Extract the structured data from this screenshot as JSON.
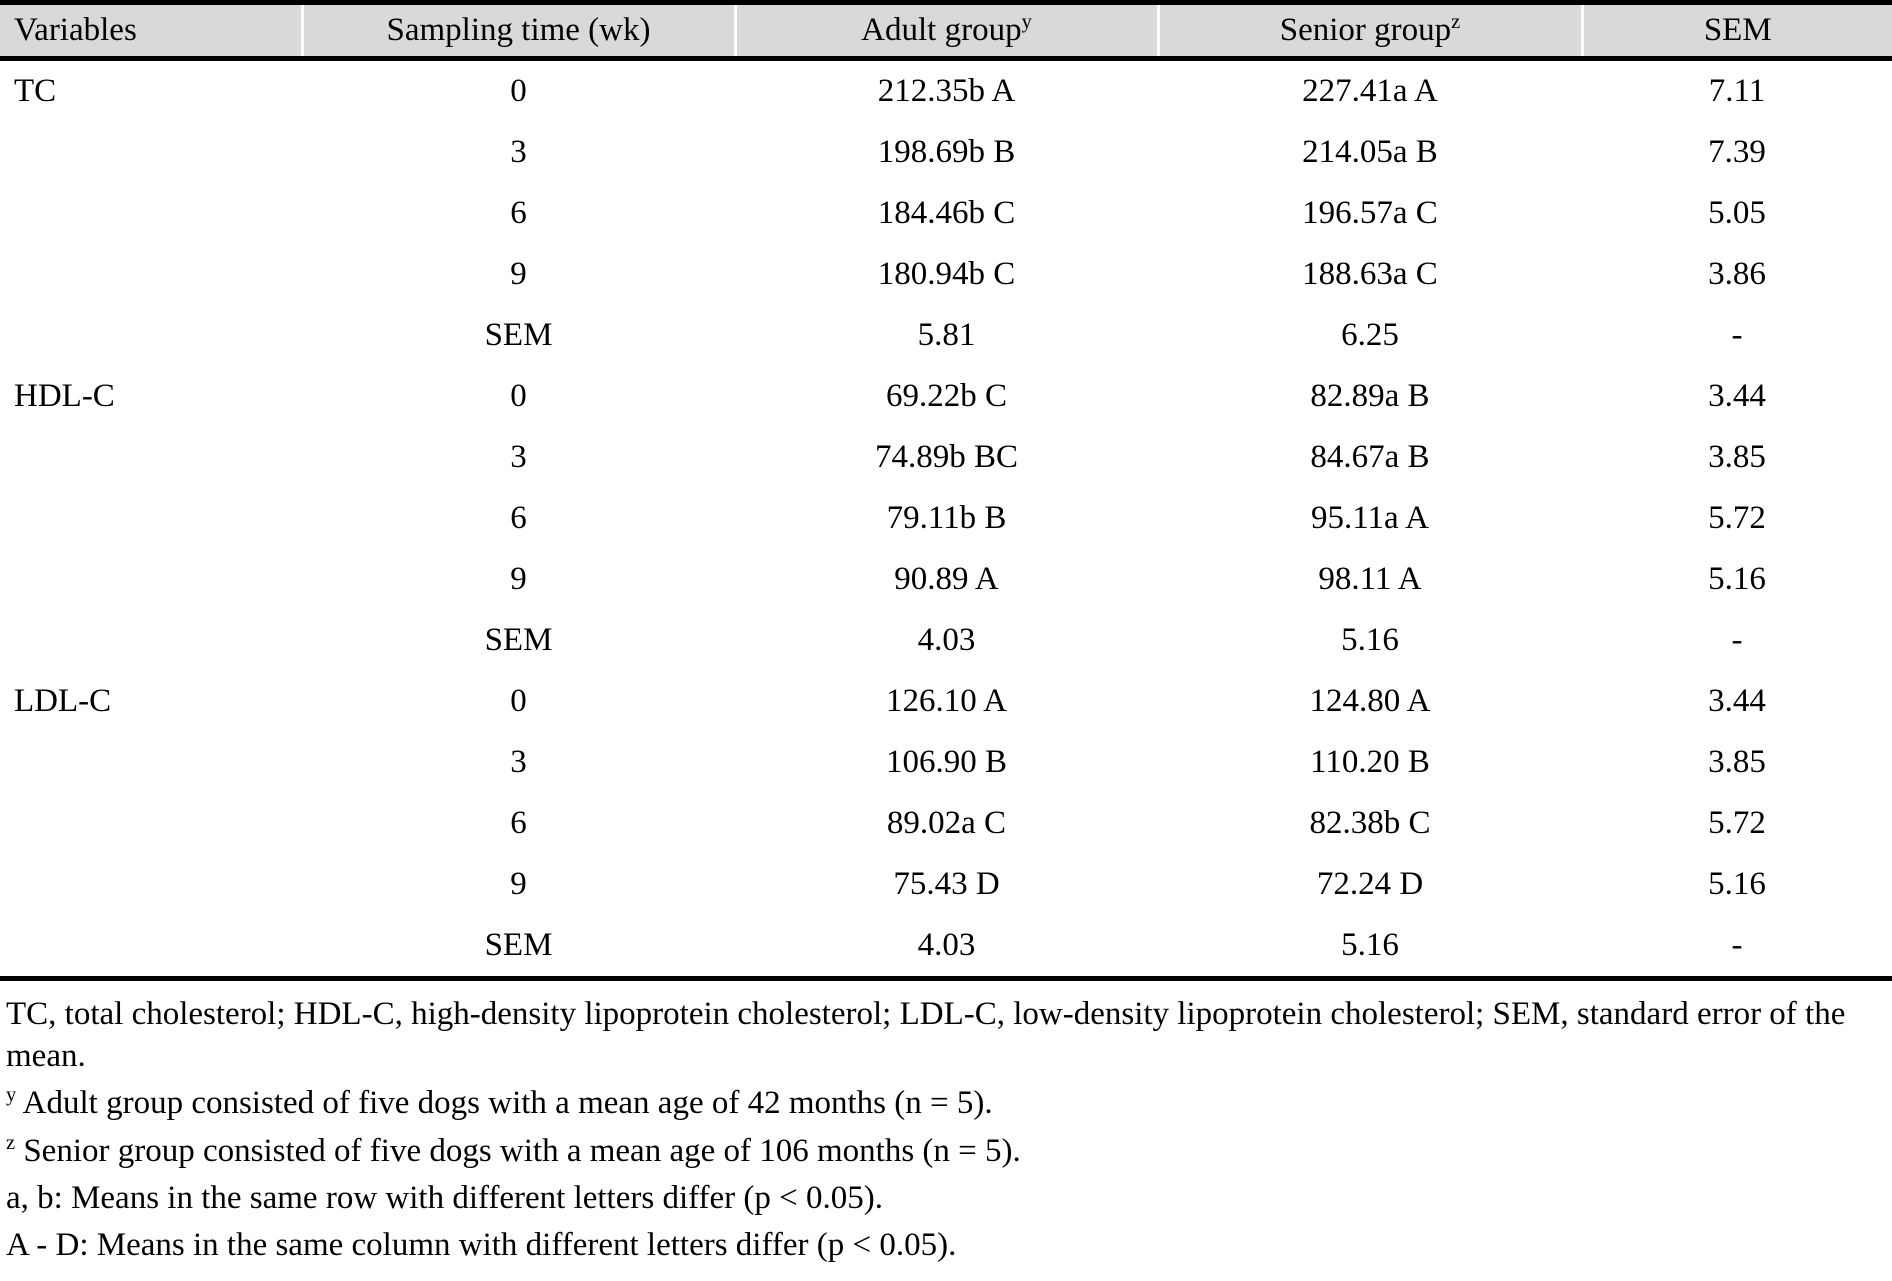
{
  "table": {
    "header_bg": "#d9d9d9",
    "border_color": "#000000",
    "header": [
      {
        "label": "Variables",
        "sup": ""
      },
      {
        "label": "Sampling time (wk)",
        "sup": ""
      },
      {
        "label": "Adult group",
        "sup": "y"
      },
      {
        "label": "Senior group",
        "sup": "z"
      },
      {
        "label": "SEM",
        "sup": ""
      }
    ],
    "rows": [
      [
        "TC",
        "0",
        "212.35b A",
        "227.41a A",
        "7.11"
      ],
      [
        "",
        "3",
        "198.69b B",
        "214.05a B",
        "7.39"
      ],
      [
        "",
        "6",
        "184.46b C",
        "196.57a C",
        "5.05"
      ],
      [
        "",
        "9",
        "180.94b C",
        "188.63a C",
        "3.86"
      ],
      [
        "",
        "SEM",
        "5.81",
        "6.25",
        "-"
      ],
      [
        "HDL-C",
        "0",
        "69.22b C",
        "82.89a B",
        "3.44"
      ],
      [
        "",
        "3",
        "74.89b BC",
        "84.67a B",
        "3.85"
      ],
      [
        "",
        "6",
        "79.11b B",
        "95.11a A",
        "5.72"
      ],
      [
        "",
        "9",
        "90.89 A",
        "98.11 A",
        "5.16"
      ],
      [
        "",
        "SEM",
        "4.03",
        "5.16",
        "-"
      ],
      [
        "LDL-C",
        "0",
        "126.10 A",
        "124.80 A",
        "3.44"
      ],
      [
        "",
        "3",
        "106.90 B",
        "110.20 B",
        "3.85"
      ],
      [
        "",
        "6",
        "89.02a C",
        "82.38b C",
        "5.72"
      ],
      [
        "",
        "9",
        "75.43 D",
        "72.24 D",
        "5.16"
      ],
      [
        "",
        "SEM",
        "4.03",
        "5.16",
        "-"
      ]
    ]
  },
  "footnotes": [
    {
      "sup": "",
      "text": "TC, total cholesterol; HDL-C, high-density lipoprotein cholesterol; LDL-C, low-density lipoprotein cholesterol; SEM, standard error of the mean."
    },
    {
      "sup": "y",
      "text": "Adult group consisted of five dogs with a mean age of 42 months (n = 5)."
    },
    {
      "sup": "z",
      "text": "Senior group consisted of five dogs with a mean age of 106 months (n = 5)."
    },
    {
      "sup": "",
      "text": "a, b: Means in the same row with different letters differ (p < 0.05)."
    },
    {
      "sup": "",
      "text": "A - D: Means in the same column with different letters differ (p < 0.05)."
    }
  ]
}
